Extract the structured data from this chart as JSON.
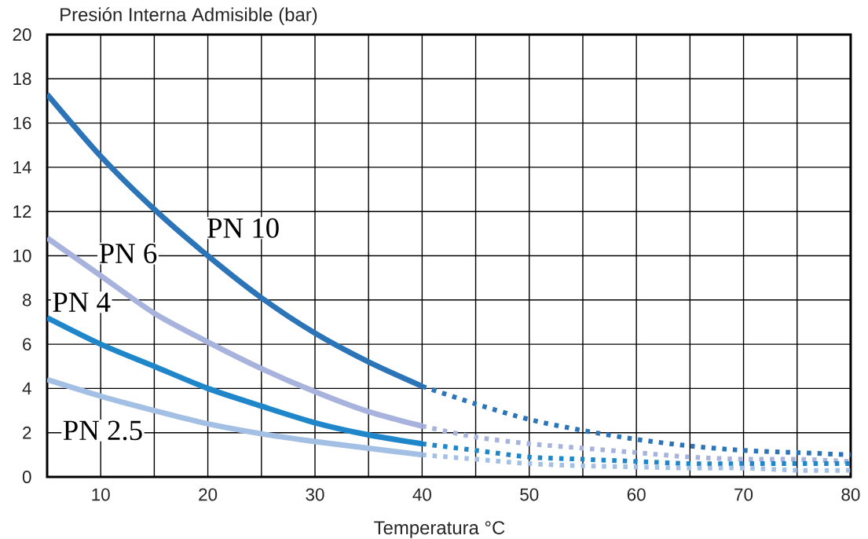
{
  "chart_data": {
    "type": "line",
    "xlabel": "Temperatura °C",
    "ylabel": "Presión Interna Admisible (bar)",
    "xlim": [
      5,
      80
    ],
    "ylim": [
      0,
      20
    ],
    "xticks": [
      10,
      {
        "value": 15,
        "label": null
      },
      20,
      {
        "value": 25,
        "label": null
      },
      30,
      {
        "value": 35,
        "label": null
      },
      40,
      {
        "value": 45,
        "label": null
      },
      50,
      {
        "value": 55,
        "label": null
      },
      60,
      {
        "value": 65,
        "label": null
      },
      70,
      {
        "value": 75,
        "label": null
      },
      80
    ],
    "yticks": [
      0,
      2,
      4,
      6,
      8,
      10,
      12,
      14,
      16,
      18,
      20
    ],
    "grid": true,
    "series": [
      {
        "name": "PN 10",
        "color": "#2b74b8",
        "line_style": "solid",
        "x": [
          5,
          10,
          15,
          20,
          25,
          30,
          35,
          40
        ],
        "values": [
          17.3,
          14.5,
          12.1,
          10.0,
          8.1,
          6.5,
          5.2,
          4.1
        ]
      },
      {
        "color": "#2b74b8",
        "line_style": "dotted",
        "x": [
          40,
          45,
          50,
          55,
          60,
          65,
          70,
          75,
          80
        ],
        "values": [
          4.1,
          3.3,
          2.6,
          2.1,
          1.7,
          1.4,
          1.2,
          1.1,
          1.0
        ]
      },
      {
        "name": "PN 6",
        "color": "#a7b3dc",
        "line_style": "solid",
        "x": [
          5,
          10,
          15,
          20,
          25,
          30,
          35,
          40
        ],
        "values": [
          10.8,
          9.1,
          7.4,
          6.1,
          4.9,
          3.85,
          2.95,
          2.3
        ]
      },
      {
        "color": "#a7b3dc",
        "line_style": "dotted",
        "x": [
          40,
          45,
          50,
          55,
          60,
          65,
          70,
          75,
          80
        ],
        "values": [
          2.3,
          1.8,
          1.5,
          1.3,
          1.1,
          0.9,
          0.8,
          0.8,
          0.7
        ]
      },
      {
        "name": "PN 4",
        "color": "#1f87c9",
        "line_style": "solid",
        "x": [
          5,
          10,
          15,
          20,
          25,
          30,
          35,
          40
        ],
        "values": [
          7.2,
          6.0,
          5.0,
          4.0,
          3.2,
          2.45,
          1.9,
          1.5
        ]
      },
      {
        "color": "#1f87c9",
        "line_style": "dotted",
        "x": [
          40,
          45,
          50,
          55,
          60,
          65,
          70,
          75,
          80
        ],
        "values": [
          1.5,
          1.2,
          0.9,
          0.8,
          0.7,
          0.6,
          0.6,
          0.6,
          0.6
        ]
      },
      {
        "name": "PN 2.5",
        "color": "#a3c0e4",
        "line_style": "solid",
        "x": [
          5,
          10,
          15,
          20,
          25,
          30,
          35,
          40
        ],
        "values": [
          4.4,
          3.65,
          3.0,
          2.4,
          1.95,
          1.6,
          1.3,
          1.0
        ]
      },
      {
        "color": "#a3c0e4",
        "line_style": "dotted",
        "x": [
          40,
          45,
          50,
          55,
          60,
          65,
          70,
          75,
          80
        ],
        "values": [
          1.0,
          0.8,
          0.6,
          0.5,
          0.45,
          0.4,
          0.4,
          0.3,
          0.3
        ]
      }
    ]
  }
}
